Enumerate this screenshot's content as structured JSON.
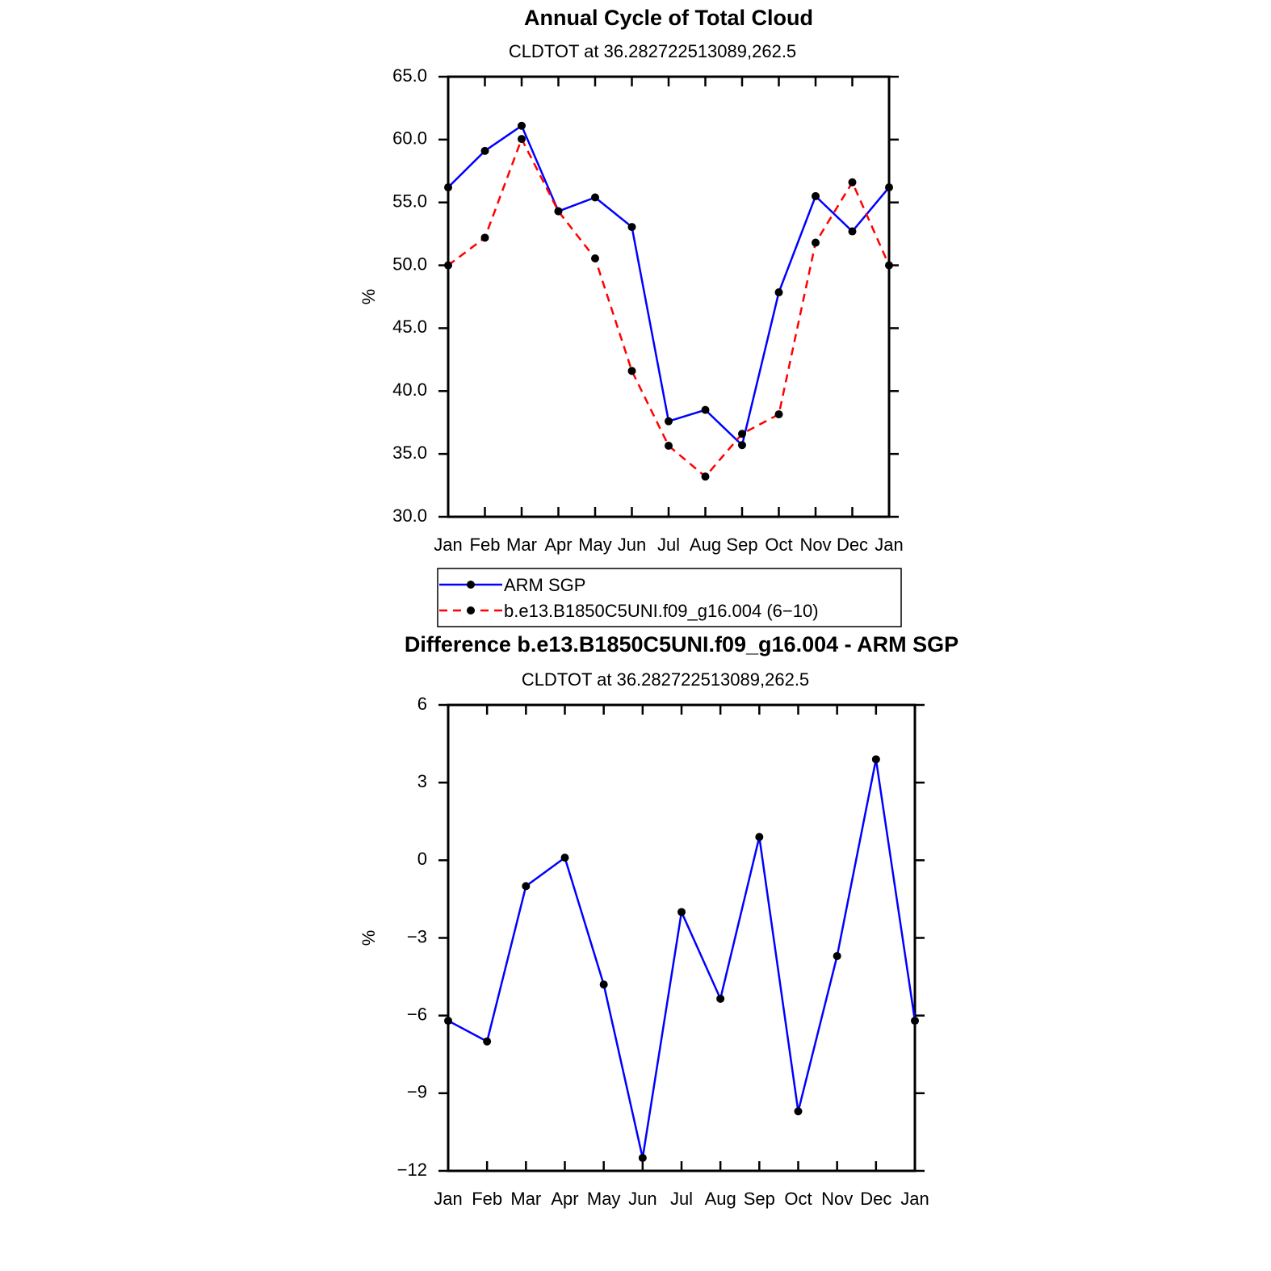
{
  "chart_data": [
    {
      "type": "line",
      "title": "Annual Cycle of Total Cloud",
      "subtitle": "CLDTOT at 36.282722513089,262.5",
      "y_label": "%",
      "categories": [
        "Jan",
        "Feb",
        "Mar",
        "Apr",
        "May",
        "Jun",
        "Jul",
        "Aug",
        "Sep",
        "Oct",
        "Nov",
        "Dec",
        "Jan"
      ],
      "series": [
        {
          "name": "ARM SGP",
          "color": "#0000ff",
          "linestyle": "solid",
          "values": [
            56.2,
            59.1,
            61.1,
            54.3,
            55.4,
            53.05,
            37.6,
            38.5,
            35.7,
            47.85,
            55.5,
            52.7,
            56.2
          ]
        },
        {
          "name": "b.e13.B1850C5UNI.f09_g16.004 (6−10)",
          "color": "#ff0000",
          "linestyle": "dashed",
          "values": [
            50.0,
            52.2,
            60.05,
            54.3,
            50.55,
            41.6,
            35.65,
            33.2,
            36.6,
            38.15,
            51.8,
            56.6,
            50.0
          ]
        }
      ],
      "ylim": [
        30,
        65
      ],
      "yticks": [
        {
          "value": 30,
          "label": "30.0"
        },
        {
          "value": 35,
          "label": "35.0"
        },
        {
          "value": 40,
          "label": "40.0"
        },
        {
          "value": 45,
          "label": "45.0"
        },
        {
          "value": 50,
          "label": "50.0"
        },
        {
          "value": 55,
          "label": "55.0"
        },
        {
          "value": 60,
          "label": "60.0"
        },
        {
          "value": 65,
          "label": "65.0"
        }
      ],
      "legend": "bottom"
    },
    {
      "type": "line",
      "title": "Difference b.e13.B1850C5UNI.f09_g16.004 - ARM SGP",
      "subtitle": "CLDTOT at 36.282722513089,262.5",
      "y_label": "%",
      "categories": [
        "Jan",
        "Feb",
        "Mar",
        "Apr",
        "May",
        "Jun",
        "Jul",
        "Aug",
        "Sep",
        "Oct",
        "Nov",
        "Dec",
        "Jan"
      ],
      "series": [
        {
          "color": "#0000ff",
          "linestyle": "solid",
          "values": [
            -6.2,
            -7.0,
            -1.0,
            0.1,
            -4.8,
            -11.5,
            -2.0,
            -5.35,
            0.9,
            -9.7,
            -3.7,
            3.9,
            -6.2
          ]
        }
      ],
      "ylim": [
        -12,
        6
      ],
      "yticks": [
        {
          "value": -12,
          "label": "−12"
        },
        {
          "value": -9,
          "label": "−9"
        },
        {
          "value": -6,
          "label": "−6"
        },
        {
          "value": -3,
          "label": "−3"
        },
        0,
        3,
        6
      ]
    }
  ]
}
